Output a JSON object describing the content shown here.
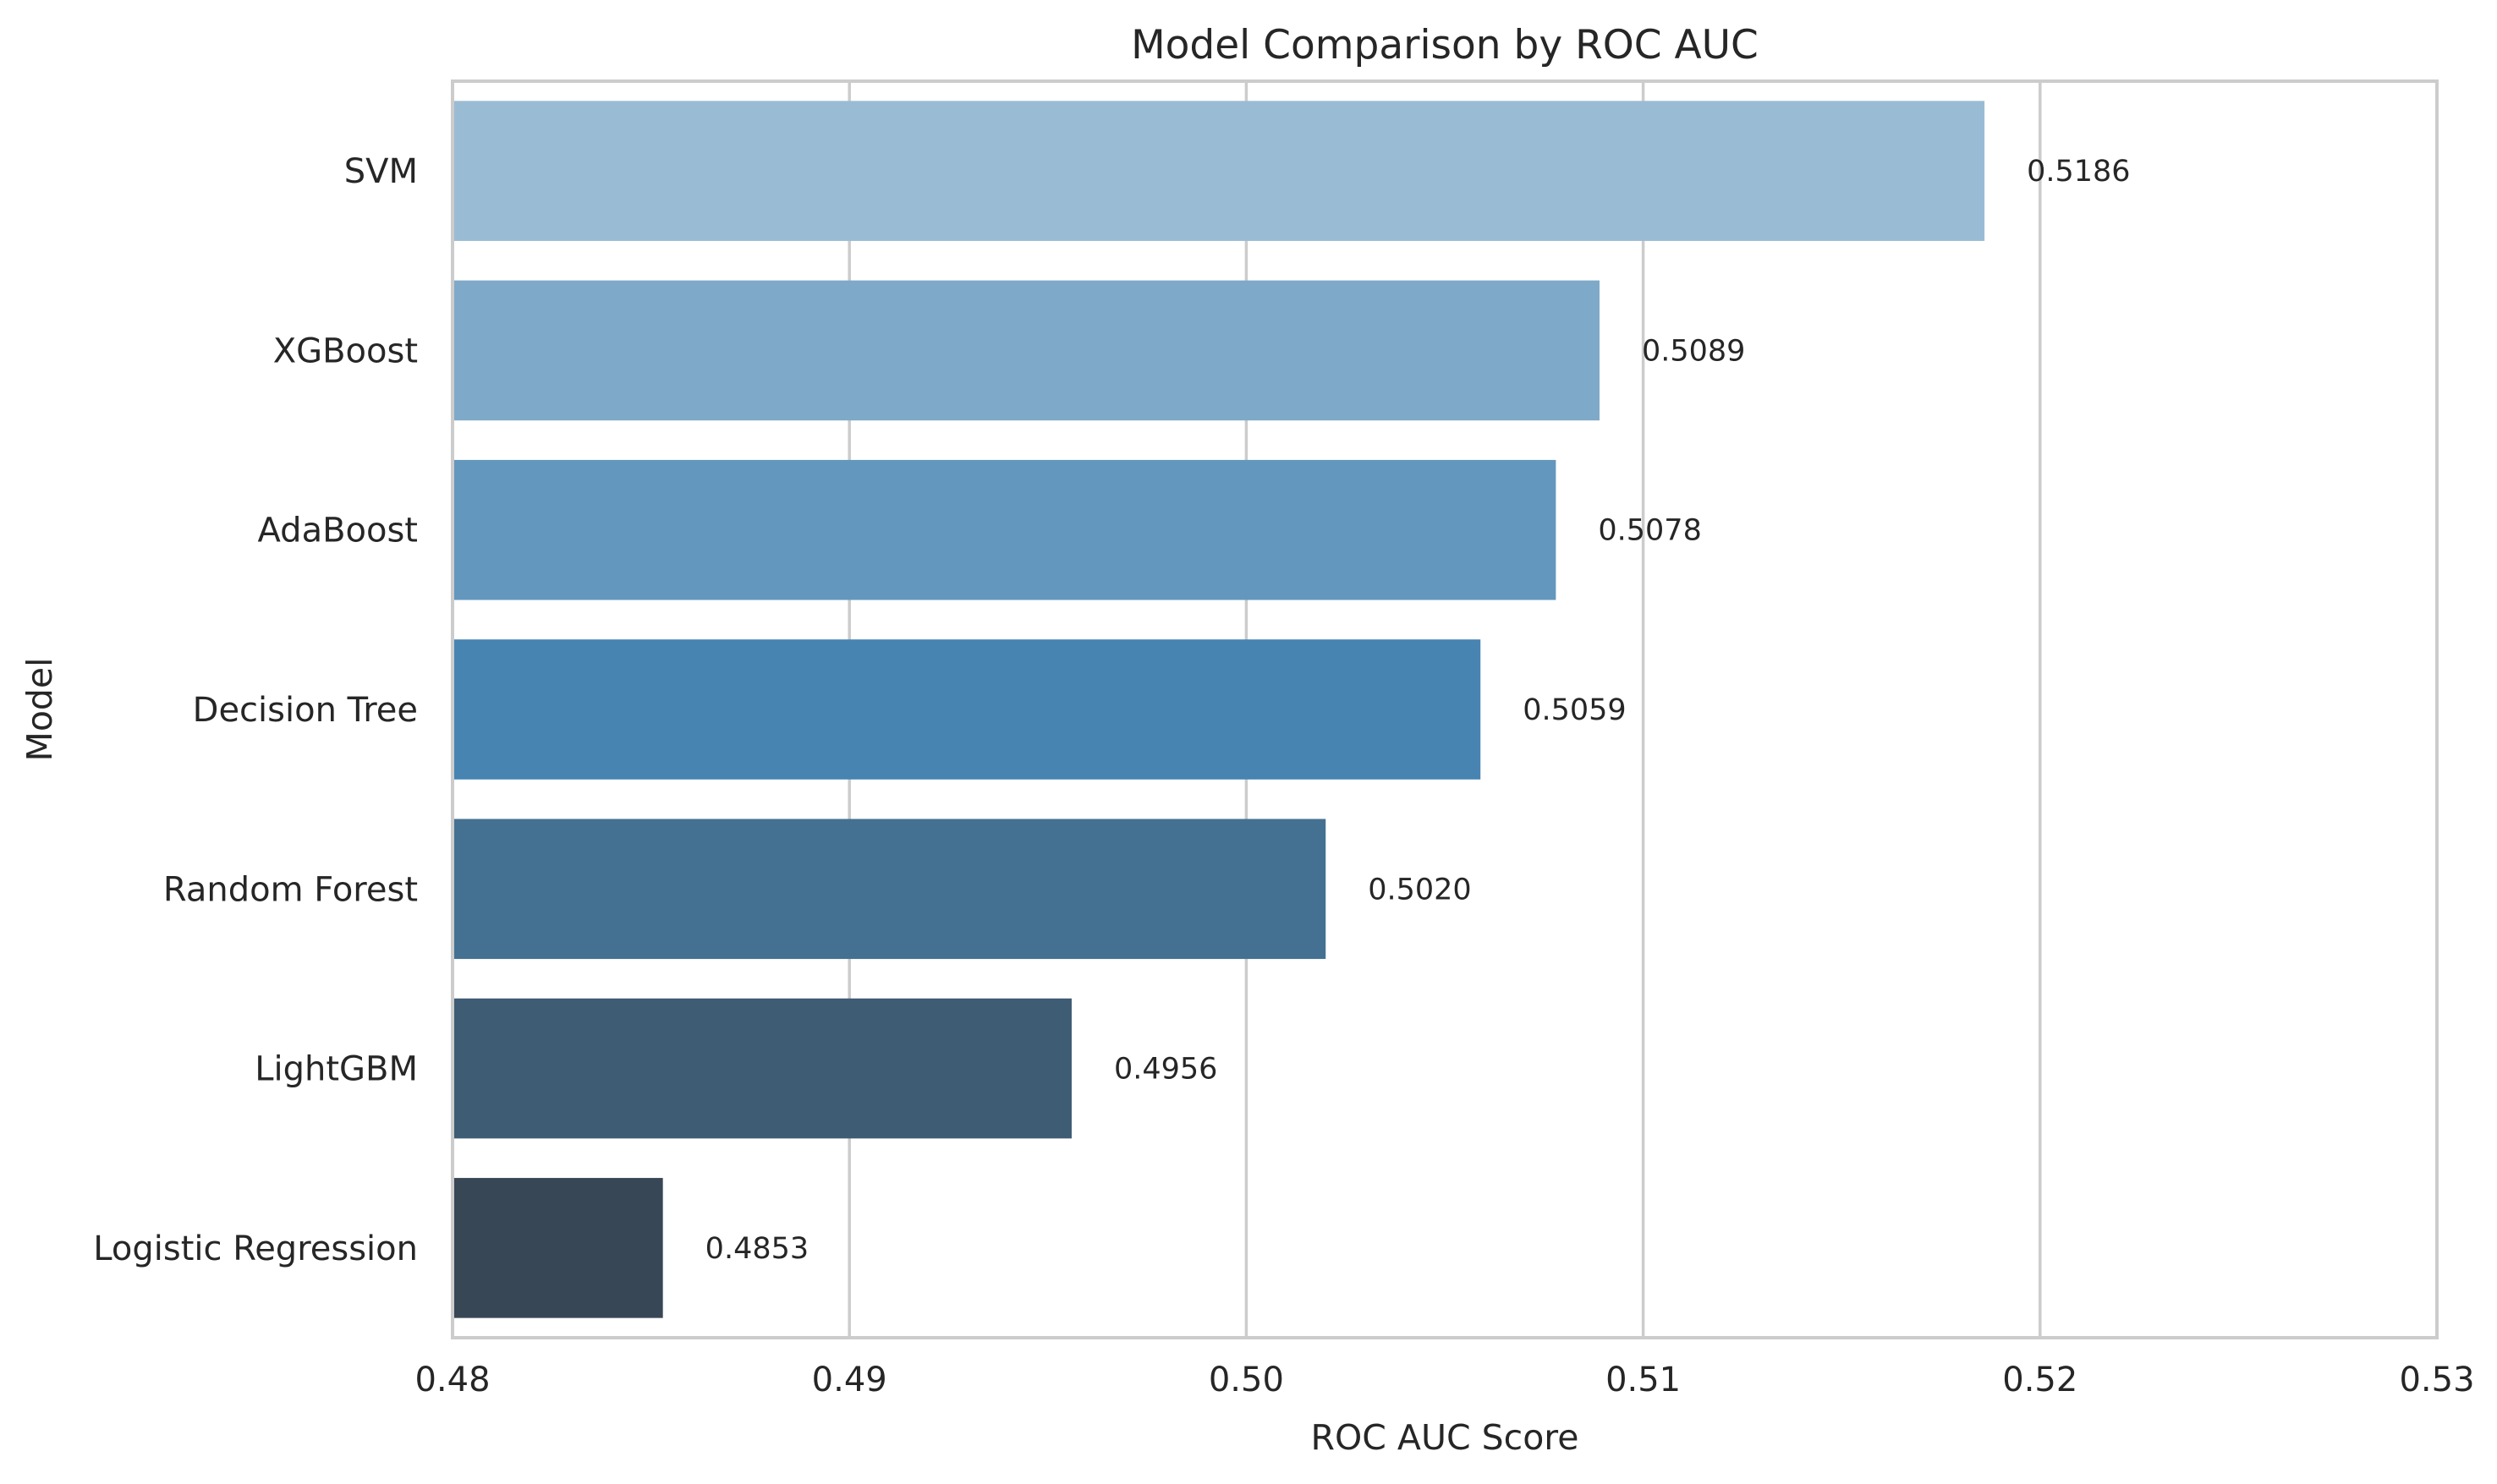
{
  "chart_data": {
    "type": "bar",
    "orientation": "horizontal",
    "title": "Model Comparison by ROC AUC",
    "xlabel": "ROC AUC Score",
    "ylabel": "Model",
    "xlim": [
      0.48,
      0.53
    ],
    "xticks": [
      0.48,
      0.49,
      0.5,
      0.51,
      0.52,
      0.53
    ],
    "xtick_labels": [
      "0.48",
      "0.49",
      "0.50",
      "0.51",
      "0.52",
      "0.53"
    ],
    "grid": true,
    "categories": [
      "SVM",
      "XGBoost",
      "AdaBoost",
      "Decision Tree",
      "Random Forest",
      "LightGBM",
      "Logistic Regression"
    ],
    "values": [
      0.5186,
      0.5089,
      0.5078,
      0.5059,
      0.502,
      0.4956,
      0.4853
    ],
    "value_labels": [
      "0.5186",
      "0.5089",
      "0.5078",
      "0.5059",
      "0.5020",
      "0.4956",
      "0.4853"
    ],
    "colors": [
      "#9abbd4",
      "#7fa9c8",
      "#6397bd",
      "#4884b1",
      "#447191",
      "#3e5c73",
      "#384756"
    ]
  }
}
